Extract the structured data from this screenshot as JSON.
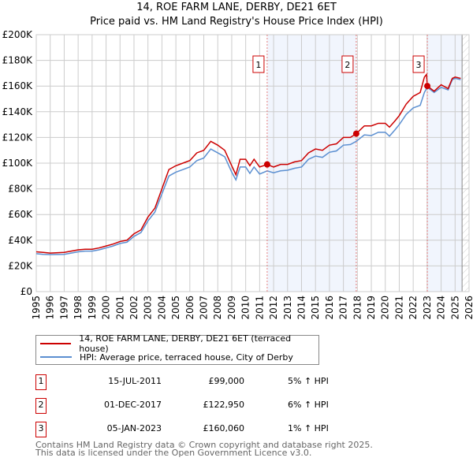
{
  "title": "14, ROE FARM LANE, DERBY, DE21 6ET",
  "subtitle": "Price paid vs. HM Land Registry's House Price Index (HPI)",
  "chart_data": {
    "type": "line",
    "xlim": [
      1995,
      2026
    ],
    "ylim": [
      0,
      200000
    ],
    "y_ticks": [
      {
        "v": 0,
        "l": "£0"
      },
      {
        "v": 20000,
        "l": "£20K"
      },
      {
        "v": 40000,
        "l": "£40K"
      },
      {
        "v": 60000,
        "l": "£60K"
      },
      {
        "v": 80000,
        "l": "£80K"
      },
      {
        "v": 100000,
        "l": "£100K"
      },
      {
        "v": 120000,
        "l": "£120K"
      },
      {
        "v": 140000,
        "l": "£140K"
      },
      {
        "v": 160000,
        "l": "£160K"
      },
      {
        "v": 180000,
        "l": "£180K"
      },
      {
        "v": 200000,
        "l": "£200K"
      }
    ],
    "x_ticks": [
      "1995",
      "1996",
      "1997",
      "1998",
      "1999",
      "2000",
      "2001",
      "2002",
      "2003",
      "2004",
      "2005",
      "2006",
      "2007",
      "2008",
      "2009",
      "2010",
      "2011",
      "2012",
      "2013",
      "2014",
      "2015",
      "2016",
      "2017",
      "2018",
      "2019",
      "2020",
      "2021",
      "2022",
      "2023",
      "2024",
      "2025",
      "2026"
    ],
    "shaded_ranges": [
      [
        2011.54,
        2017.92
      ],
      [
        2023.01,
        2025.5
      ]
    ],
    "hatch_from": 2025.5,
    "series": [
      {
        "name": "14, ROE FARM LANE, DERBY, DE21 6ET (terraced house)",
        "color": "#cc0000",
        "x": [
          1995,
          1995.5,
          1996,
          1997,
          1997.5,
          1998,
          1998.5,
          1999,
          1999.5,
          2000,
          2000.5,
          2001,
          2001.5,
          2002,
          2002.5,
          2003,
          2003.5,
          2004,
          2004.5,
          2005,
          2005.5,
          2006,
          2006.5,
          2007,
          2007.5,
          2008,
          2008.5,
          2009,
          2009.3,
          2009.6,
          2010,
          2010.3,
          2010.6,
          2011,
          2011.54,
          2012,
          2012.5,
          2013,
          2013.5,
          2014,
          2014.5,
          2015,
          2015.5,
          2016,
          2016.5,
          2017,
          2017.5,
          2017.92,
          2018.5,
          2019,
          2019.5,
          2020,
          2020.3,
          2020.7,
          2021,
          2021.5,
          2022,
          2022.5,
          2022.8,
          2022.95,
          2023.01,
          2023.5,
          2024,
          2024.5,
          2024.8,
          2025,
          2025.4
        ],
        "y": [
          31000,
          30500,
          30000,
          30500,
          31500,
          32500,
          33000,
          33000,
          34000,
          35500,
          37000,
          39000,
          40000,
          45000,
          48000,
          58000,
          65000,
          80000,
          95000,
          98000,
          100000,
          102000,
          108000,
          110000,
          117000,
          114000,
          110000,
          98000,
          91000,
          103000,
          103000,
          98000,
          103000,
          97000,
          99000,
          97000,
          99000,
          99000,
          101000,
          102000,
          108000,
          111000,
          110000,
          114000,
          115000,
          120000,
          120000,
          122950,
          129000,
          129000,
          131000,
          131000,
          128000,
          133000,
          137000,
          146000,
          152000,
          155000,
          167000,
          169000,
          160060,
          156000,
          161000,
          158000,
          166000,
          167000,
          166000
        ]
      },
      {
        "name": "HPI: Average price, terraced house, City of Derby",
        "color": "#5b8fd1",
        "x": [
          1995,
          1995.5,
          1996,
          1997,
          1997.5,
          1998,
          1998.5,
          1999,
          1999.5,
          2000,
          2000.5,
          2001,
          2001.5,
          2002,
          2002.5,
          2003,
          2003.5,
          2004,
          2004.5,
          2005,
          2005.5,
          2006,
          2006.5,
          2007,
          2007.5,
          2008,
          2008.5,
          2009,
          2009.3,
          2009.6,
          2010,
          2010.3,
          2010.6,
          2011,
          2011.54,
          2012,
          2012.5,
          2013,
          2013.5,
          2014,
          2014.5,
          2015,
          2015.5,
          2016,
          2016.5,
          2017,
          2017.5,
          2017.92,
          2018.5,
          2019,
          2019.5,
          2020,
          2020.3,
          2020.7,
          2021,
          2021.5,
          2022,
          2022.5,
          2022.8,
          2022.95,
          2023.01,
          2023.5,
          2024,
          2024.5,
          2024.8,
          2025,
          2025.4
        ],
        "y": [
          29500,
          29000,
          28800,
          29000,
          30000,
          31000,
          31500,
          31500,
          32500,
          34000,
          35500,
          37500,
          38500,
          43000,
          46000,
          55000,
          62000,
          76000,
          90000,
          93000,
          95000,
          97000,
          102000,
          104000,
          111000,
          108000,
          105000,
          93000,
          87000,
          97000,
          97000,
          92000,
          97000,
          91500,
          94000,
          92500,
          94000,
          94500,
          96000,
          97000,
          103000,
          105500,
          104500,
          108500,
          109500,
          114000,
          114500,
          117000,
          122000,
          121500,
          124000,
          124000,
          121000,
          126000,
          130000,
          138000,
          143000,
          145000,
          155000,
          158000,
          159000,
          155000,
          159000,
          157000,
          165000,
          166000,
          165000
        ]
      }
    ],
    "sales": [
      {
        "n": "1",
        "x": 2011.54,
        "y": 99000
      },
      {
        "n": "2",
        "x": 2017.92,
        "y": 122950
      },
      {
        "n": "3",
        "x": 2023.01,
        "y": 160060
      }
    ]
  },
  "legend": [
    "14, ROE FARM LANE, DERBY, DE21 6ET (terraced house)",
    "HPI: Average price, terraced house, City of Derby"
  ],
  "transactions": [
    {
      "n": "1",
      "date": "15-JUL-2011",
      "price": "£99,000",
      "hpi": "5% ↑ HPI"
    },
    {
      "n": "2",
      "date": "01-DEC-2017",
      "price": "£122,950",
      "hpi": "6% ↑ HPI"
    },
    {
      "n": "3",
      "date": "05-JAN-2023",
      "price": "£160,060",
      "hpi": "1% ↑ HPI"
    }
  ],
  "footer": [
    "Contains HM Land Registry data © Crown copyright and database right 2025.",
    "This data is licensed under the Open Government Licence v3.0."
  ]
}
